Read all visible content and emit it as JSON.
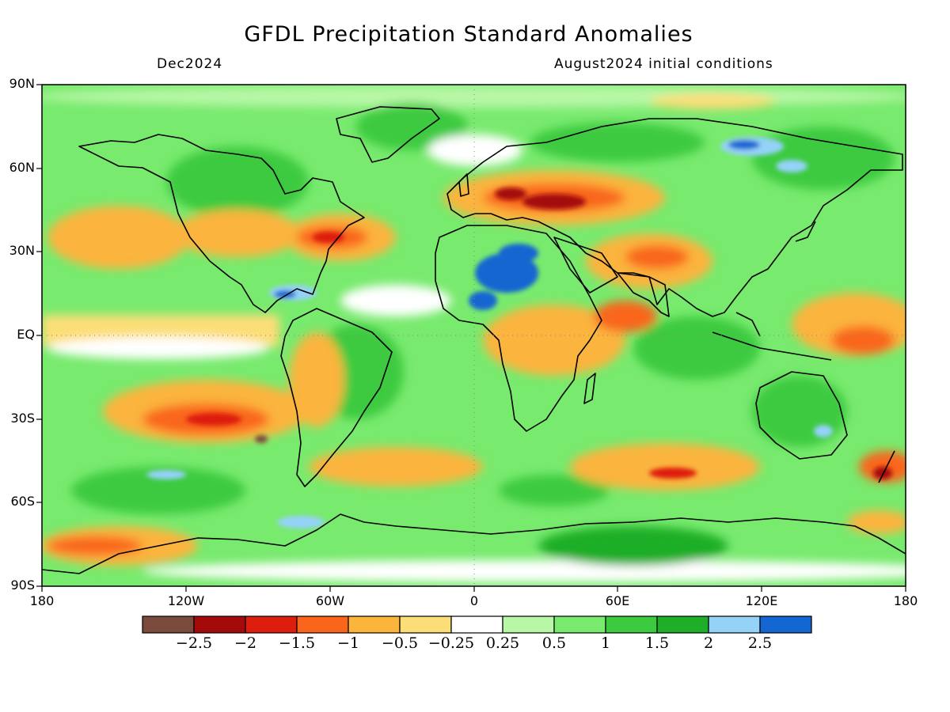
{
  "title": "GFDL Precipitation Standard Anomalies",
  "valid_month": "Dec2024",
  "init_conditions": "August2024 initial conditions",
  "latitude_labels": [
    "90N",
    "60N",
    "30N",
    "EQ",
    "30S",
    "60S",
    "90S"
  ],
  "longitude_labels": [
    "180",
    "120W",
    "60W",
    "0",
    "60E",
    "120E",
    "180"
  ],
  "colorbar": {
    "colors": [
      "#7a4b3c",
      "#a50a0a",
      "#dd1e0e",
      "#f9661b",
      "#fbb43c",
      "#fcde78",
      "#ffffff",
      "#b7f7a6",
      "#78ea6e",
      "#3cca3f",
      "#1fae27",
      "#94d2f8",
      "#1466d2"
    ],
    "labels": [
      "−2.5",
      "−2",
      "−1.5",
      "−1",
      "−0.5",
      "−0.25",
      "0.25",
      "0.5",
      "1",
      "1.5",
      "2",
      "2.5"
    ]
  }
}
